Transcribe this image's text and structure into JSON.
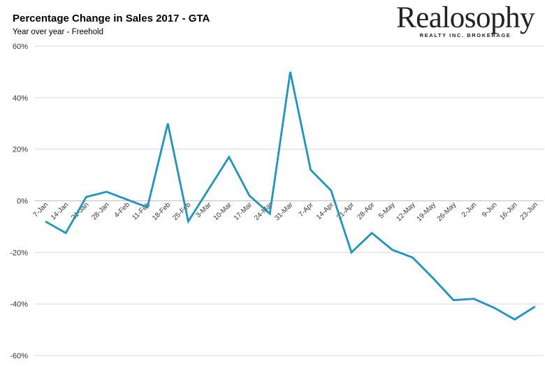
{
  "title": "Percentage Change in Sales 2017 - GTA",
  "subtitle": "Year over year - Freehold",
  "logo": {
    "name": "Realosophy",
    "tagline": "REALTY INC. BROKERAGE"
  },
  "colors": {
    "line": "#1a95c4",
    "grid": "#d9d9d9",
    "axis": "#bfbfbf"
  },
  "chart_data": {
    "type": "line",
    "title": "Percentage Change in Sales 2017 - GTA",
    "subtitle": "Year over year - Freehold",
    "xlabel": "",
    "ylabel": "",
    "ylim": [
      -60,
      60
    ],
    "yticks": [
      60,
      40,
      20,
      0,
      -20,
      -40,
      -60
    ],
    "ytick_labels": [
      "60%",
      "40%",
      "20%",
      "0%",
      "-20%",
      "-40%",
      "-60%"
    ],
    "grid": true,
    "categories": [
      "7-Jan",
      "14-Jan",
      "21-Jan",
      "28-Jan",
      "4-Feb",
      "11-Feb",
      "18-Feb",
      "25-Feb",
      "3-Mar",
      "10-Mar",
      "17-Mar",
      "24-Mar",
      "31-Mar",
      "7-Apr",
      "14-Apr",
      "21-Apr",
      "28-Apr",
      "5-May",
      "12-May",
      "19-May",
      "26-May",
      "2-Jun",
      "9-Jun",
      "16-Jun",
      "23-Jun"
    ],
    "series": [
      {
        "values": [
          -8,
          -12.5,
          1.5,
          3.5,
          0.5,
          -2.5,
          30,
          -8,
          4.5,
          17,
          2,
          -5,
          50,
          12,
          4,
          -20,
          -12.5,
          -19,
          -22,
          -30,
          -38.5,
          -38,
          -41.5,
          -46,
          -41
        ]
      }
    ]
  }
}
